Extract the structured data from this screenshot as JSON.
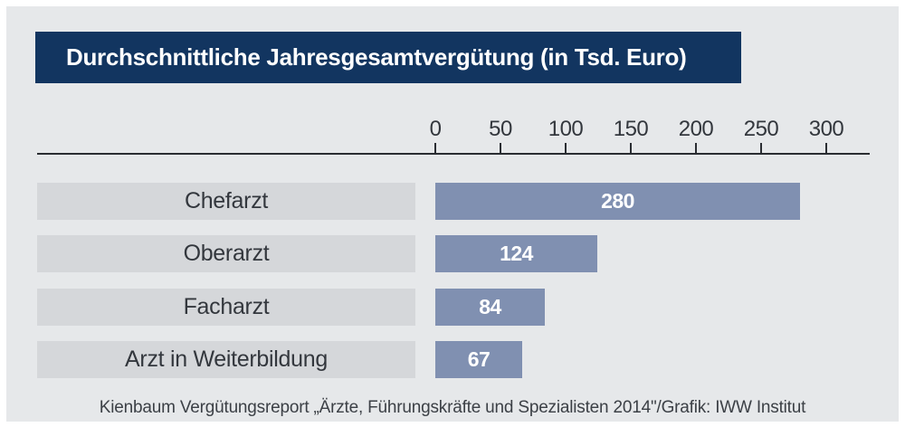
{
  "title": "Durchschnittliche Jahresgesamtvergütung (in Tsd. Euro)",
  "source": "Kienbaum Vergütungsreport „Ärzte, Führungskräfte und Spezialisten 2014\"/Grafik: IWW Institut",
  "colors": {
    "title_bg": "#123560",
    "title_text": "#ffffff",
    "bar": "#8090b1",
    "bar_value_text": "#ffffff",
    "category_label_bg": "#d5d7da",
    "panel_bg": "#e6e8ea",
    "page_bg": "#ffffff",
    "axis_line": "#2a2d32",
    "text": "#33373d"
  },
  "chart_data": {
    "type": "bar",
    "orientation": "horizontal",
    "title": "Durchschnittliche Jahresgesamtvergütung (in Tsd. Euro)",
    "categories": [
      "Chefarzt",
      "Oberarzt",
      "Facharzt",
      "Arzt in Weiterbildung"
    ],
    "values": [
      280,
      124,
      84,
      67
    ],
    "xlabel": "",
    "ylabel": "",
    "xlim": [
      0,
      320
    ],
    "xticks": [
      0,
      50,
      100,
      150,
      200,
      250,
      300
    ],
    "value_labels_inside_bars": true,
    "grid": false,
    "legend": "none"
  }
}
